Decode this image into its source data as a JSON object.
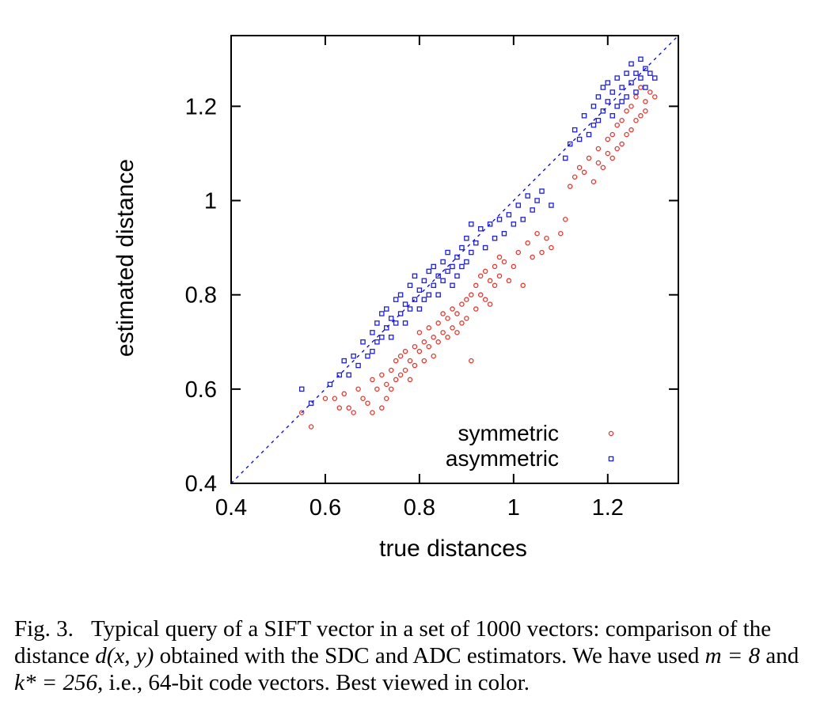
{
  "chart_data": {
    "type": "scatter",
    "xlabel": "true distances",
    "ylabel": "estimated distance",
    "xlim": [
      0.4,
      1.35
    ],
    "ylim": [
      0.4,
      1.35
    ],
    "xticks": [
      "0.4",
      "0.6",
      "0.8",
      "1",
      "1.2"
    ],
    "yticks": [
      "0.4",
      "0.6",
      "0.8",
      "1",
      "1.2"
    ],
    "reference_line": {
      "style": "dashed",
      "color": "#0000ff",
      "from": [
        0.4,
        0.4
      ],
      "to": [
        1.35,
        1.35
      ]
    },
    "legend": {
      "placement": "bottom-right"
    },
    "series": [
      {
        "name": "symmetric",
        "marker": "circle",
        "color": "#e8372f",
        "points": [
          [
            0.55,
            0.55
          ],
          [
            0.57,
            0.52
          ],
          [
            0.6,
            0.58
          ],
          [
            0.62,
            0.58
          ],
          [
            0.63,
            0.56
          ],
          [
            0.64,
            0.59
          ],
          [
            0.65,
            0.56
          ],
          [
            0.66,
            0.55
          ],
          [
            0.67,
            0.6
          ],
          [
            0.68,
            0.58
          ],
          [
            0.69,
            0.57
          ],
          [
            0.7,
            0.62
          ],
          [
            0.7,
            0.55
          ],
          [
            0.71,
            0.6
          ],
          [
            0.72,
            0.56
          ],
          [
            0.72,
            0.63
          ],
          [
            0.73,
            0.58
          ],
          [
            0.73,
            0.61
          ],
          [
            0.74,
            0.64
          ],
          [
            0.74,
            0.6
          ],
          [
            0.75,
            0.66
          ],
          [
            0.75,
            0.62
          ],
          [
            0.76,
            0.67
          ],
          [
            0.76,
            0.63
          ],
          [
            0.77,
            0.64
          ],
          [
            0.77,
            0.68
          ],
          [
            0.78,
            0.66
          ],
          [
            0.78,
            0.62
          ],
          [
            0.79,
            0.69
          ],
          [
            0.79,
            0.65
          ],
          [
            0.8,
            0.68
          ],
          [
            0.8,
            0.72
          ],
          [
            0.81,
            0.7
          ],
          [
            0.81,
            0.66
          ],
          [
            0.82,
            0.73
          ],
          [
            0.82,
            0.69
          ],
          [
            0.83,
            0.71
          ],
          [
            0.83,
            0.67
          ],
          [
            0.84,
            0.74
          ],
          [
            0.84,
            0.7
          ],
          [
            0.85,
            0.72
          ],
          [
            0.85,
            0.76
          ],
          [
            0.86,
            0.75
          ],
          [
            0.86,
            0.71
          ],
          [
            0.87,
            0.77
          ],
          [
            0.87,
            0.73
          ],
          [
            0.88,
            0.76
          ],
          [
            0.88,
            0.72
          ],
          [
            0.89,
            0.78
          ],
          [
            0.89,
            0.74
          ],
          [
            0.9,
            0.79
          ],
          [
            0.9,
            0.75
          ],
          [
            0.91,
            0.66
          ],
          [
            0.91,
            0.8
          ],
          [
            0.92,
            0.77
          ],
          [
            0.92,
            0.82
          ],
          [
            0.93,
            0.84
          ],
          [
            0.93,
            0.8
          ],
          [
            0.94,
            0.79
          ],
          [
            0.94,
            0.85
          ],
          [
            0.95,
            0.83
          ],
          [
            0.95,
            0.78
          ],
          [
            0.96,
            0.86
          ],
          [
            0.96,
            0.82
          ],
          [
            0.97,
            0.84
          ],
          [
            0.97,
            0.88
          ],
          [
            0.98,
            0.87
          ],
          [
            0.99,
            0.83
          ],
          [
            1.0,
            0.86
          ],
          [
            1.01,
            0.89
          ],
          [
            1.02,
            0.82
          ],
          [
            1.03,
            0.91
          ],
          [
            1.04,
            0.88
          ],
          [
            1.05,
            0.93
          ],
          [
            1.06,
            0.89
          ],
          [
            1.07,
            0.92
          ],
          [
            1.08,
            0.9
          ],
          [
            1.1,
            0.93
          ],
          [
            1.11,
            0.96
          ],
          [
            1.12,
            1.03
          ],
          [
            1.13,
            1.05
          ],
          [
            1.14,
            1.07
          ],
          [
            1.15,
            1.06
          ],
          [
            1.16,
            1.09
          ],
          [
            1.17,
            1.04
          ],
          [
            1.18,
            1.08
          ],
          [
            1.18,
            1.11
          ],
          [
            1.19,
            1.07
          ],
          [
            1.2,
            1.1
          ],
          [
            1.2,
            1.13
          ],
          [
            1.21,
            1.09
          ],
          [
            1.21,
            1.14
          ],
          [
            1.22,
            1.11
          ],
          [
            1.22,
            1.16
          ],
          [
            1.23,
            1.12
          ],
          [
            1.23,
            1.17
          ],
          [
            1.24,
            1.14
          ],
          [
            1.24,
            1.19
          ],
          [
            1.25,
            1.15
          ],
          [
            1.25,
            1.2
          ],
          [
            1.26,
            1.17
          ],
          [
            1.26,
            1.22
          ],
          [
            1.27,
            1.18
          ],
          [
            1.27,
            1.24
          ],
          [
            1.28,
            1.21
          ],
          [
            1.28,
            1.19
          ],
          [
            1.29,
            1.23
          ],
          [
            1.3,
            1.22
          ]
        ]
      },
      {
        "name": "asymmetric",
        "marker": "square",
        "color": "#1f1fe0",
        "points": [
          [
            0.55,
            0.6
          ],
          [
            0.57,
            0.57
          ],
          [
            0.61,
            0.61
          ],
          [
            0.63,
            0.63
          ],
          [
            0.64,
            0.66
          ],
          [
            0.65,
            0.63
          ],
          [
            0.66,
            0.67
          ],
          [
            0.67,
            0.65
          ],
          [
            0.68,
            0.7
          ],
          [
            0.69,
            0.67
          ],
          [
            0.7,
            0.72
          ],
          [
            0.7,
            0.68
          ],
          [
            0.71,
            0.74
          ],
          [
            0.71,
            0.7
          ],
          [
            0.72,
            0.76
          ],
          [
            0.72,
            0.71
          ],
          [
            0.73,
            0.73
          ],
          [
            0.73,
            0.77
          ],
          [
            0.74,
            0.75
          ],
          [
            0.74,
            0.71
          ],
          [
            0.75,
            0.79
          ],
          [
            0.75,
            0.74
          ],
          [
            0.76,
            0.76
          ],
          [
            0.76,
            0.8
          ],
          [
            0.77,
            0.78
          ],
          [
            0.77,
            0.74
          ],
          [
            0.78,
            0.82
          ],
          [
            0.78,
            0.77
          ],
          [
            0.79,
            0.79
          ],
          [
            0.79,
            0.84
          ],
          [
            0.8,
            0.81
          ],
          [
            0.8,
            0.77
          ],
          [
            0.81,
            0.83
          ],
          [
            0.81,
            0.79
          ],
          [
            0.82,
            0.85
          ],
          [
            0.82,
            0.8
          ],
          [
            0.83,
            0.82
          ],
          [
            0.83,
            0.86
          ],
          [
            0.84,
            0.84
          ],
          [
            0.84,
            0.8
          ],
          [
            0.85,
            0.87
          ],
          [
            0.85,
            0.83
          ],
          [
            0.86,
            0.85
          ],
          [
            0.86,
            0.89
          ],
          [
            0.87,
            0.86
          ],
          [
            0.87,
            0.82
          ],
          [
            0.88,
            0.88
          ],
          [
            0.88,
            0.84
          ],
          [
            0.89,
            0.9
          ],
          [
            0.89,
            0.86
          ],
          [
            0.9,
            0.92
          ],
          [
            0.9,
            0.87
          ],
          [
            0.91,
            0.95
          ],
          [
            0.91,
            0.89
          ],
          [
            0.92,
            0.91
          ],
          [
            0.93,
            0.94
          ],
          [
            0.94,
            0.9
          ],
          [
            0.95,
            0.95
          ],
          [
            0.96,
            0.92
          ],
          [
            0.97,
            0.96
          ],
          [
            0.98,
            0.93
          ],
          [
            0.99,
            0.97
          ],
          [
            1.0,
            0.95
          ],
          [
            1.01,
            0.99
          ],
          [
            1.02,
            0.96
          ],
          [
            1.03,
            1.01
          ],
          [
            1.04,
            0.98
          ],
          [
            1.05,
            1.0
          ],
          [
            1.06,
            1.02
          ],
          [
            1.08,
            0.99
          ],
          [
            1.11,
            1.09
          ],
          [
            1.12,
            1.12
          ],
          [
            1.13,
            1.15
          ],
          [
            1.14,
            1.13
          ],
          [
            1.15,
            1.18
          ],
          [
            1.16,
            1.14
          ],
          [
            1.17,
            1.2
          ],
          [
            1.17,
            1.16
          ],
          [
            1.18,
            1.22
          ],
          [
            1.18,
            1.17
          ],
          [
            1.19,
            1.24
          ],
          [
            1.19,
            1.19
          ],
          [
            1.2,
            1.21
          ],
          [
            1.2,
            1.25
          ],
          [
            1.21,
            1.23
          ],
          [
            1.21,
            1.18
          ],
          [
            1.22,
            1.26
          ],
          [
            1.22,
            1.2
          ],
          [
            1.23,
            1.24
          ],
          [
            1.23,
            1.21
          ],
          [
            1.24,
            1.27
          ],
          [
            1.24,
            1.22
          ],
          [
            1.25,
            1.25
          ],
          [
            1.25,
            1.29
          ],
          [
            1.26,
            1.23
          ],
          [
            1.26,
            1.27
          ],
          [
            1.27,
            1.26
          ],
          [
            1.27,
            1.3
          ],
          [
            1.28,
            1.28
          ],
          [
            1.28,
            1.24
          ],
          [
            1.29,
            1.27
          ],
          [
            1.3,
            1.26
          ]
        ]
      }
    ]
  },
  "caption": {
    "label": "Fig. 3.",
    "text_before": "Typical query of a SIFT vector in a set of 1000 vectors: comparison of the distance ",
    "math_distance": "d(x, y)",
    "text_middle": " obtained with the SDC and ADC estimators. We have used ",
    "math_m": "m = 8",
    "text_and": " and ",
    "math_k": "k* = 256",
    "text_after": ", i.e., 64-bit code vectors. Best viewed in color."
  }
}
